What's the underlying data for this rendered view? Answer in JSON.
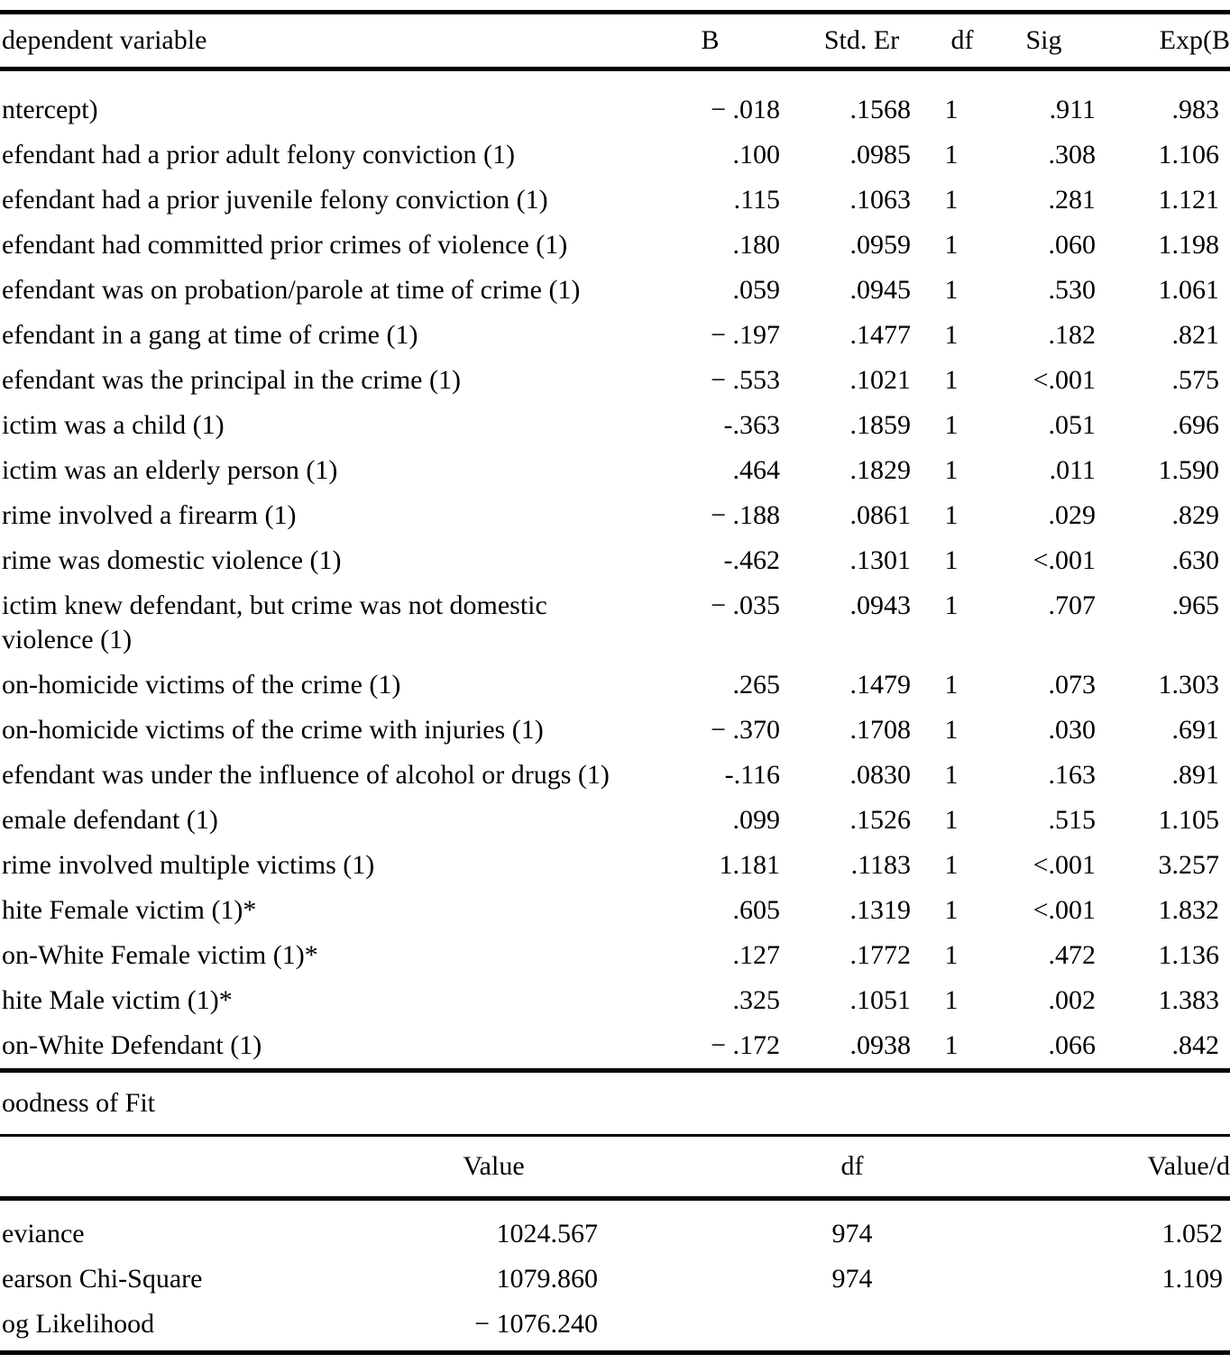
{
  "main_table": {
    "header": {
      "label": "dependent variable",
      "b": "B",
      "se": "Std. Er",
      "df": "df",
      "sig": "Sig",
      "exp": "Exp(B"
    },
    "rows": [
      {
        "label": "ntercept)",
        "b": "− .018",
        "se": ".1568",
        "df": "1",
        "sig": ".911",
        "exp": ".983"
      },
      {
        "label": "efendant had a prior adult felony conviction (1)",
        "b": ".100",
        "se": ".0985",
        "df": "1",
        "sig": ".308",
        "exp": "1.106"
      },
      {
        "label": "efendant had a prior juvenile felony conviction (1)",
        "b": ".115",
        "se": ".1063",
        "df": "1",
        "sig": ".281",
        "exp": "1.121"
      },
      {
        "label": "efendant had committed prior crimes of violence (1)",
        "b": ".180",
        "se": ".0959",
        "df": "1",
        "sig": ".060",
        "exp": "1.198"
      },
      {
        "label": "efendant was on probation/parole at time of crime (1)",
        "b": ".059",
        "se": ".0945",
        "df": "1",
        "sig": ".530",
        "exp": "1.061"
      },
      {
        "label": "efendant in a gang at time of crime (1)",
        "b": "− .197",
        "se": ".1477",
        "df": "1",
        "sig": ".182",
        "exp": ".821"
      },
      {
        "label": "efendant was the principal in the crime (1)",
        "b": "− .553",
        "se": ".1021",
        "df": "1",
        "sig": "<.001",
        "exp": ".575"
      },
      {
        "label": "ictim was a child (1)",
        "b": "-.363",
        "se": ".1859",
        "df": "1",
        "sig": ".051",
        "exp": ".696"
      },
      {
        "label": "ictim was an elderly person (1)",
        "b": ".464",
        "se": ".1829",
        "df": "1",
        "sig": ".011",
        "exp": "1.590"
      },
      {
        "label": "rime involved a firearm (1)",
        "b": "− .188",
        "se": ".0861",
        "df": "1",
        "sig": ".029",
        "exp": ".829"
      },
      {
        "label": "rime was domestic violence (1)",
        "b": "-.462",
        "se": ".1301",
        "df": "1",
        "sig": "<.001",
        "exp": ".630"
      },
      {
        "label": "ictim knew defendant, but crime was not domestic",
        "label2": "violence (1)",
        "b": "− .035",
        "se": ".0943",
        "df": "1",
        "sig": ".707",
        "exp": ".965"
      },
      {
        "label": "on-homicide victims of the crime (1)",
        "b": ".265",
        "se": ".1479",
        "df": "1",
        "sig": ".073",
        "exp": "1.303"
      },
      {
        "label": "on-homicide victims of the crime with injuries (1)",
        "b": "− .370",
        "se": ".1708",
        "df": "1",
        "sig": ".030",
        "exp": ".691"
      },
      {
        "label": "efendant was under the influence of alcohol or drugs (1)",
        "b": "-.116",
        "se": ".0830",
        "df": "1",
        "sig": ".163",
        "exp": ".891"
      },
      {
        "label": "emale defendant (1)",
        "b": ".099",
        "se": ".1526",
        "df": "1",
        "sig": ".515",
        "exp": "1.105"
      },
      {
        "label": "rime involved multiple victims (1)",
        "b": "1.181",
        "se": ".1183",
        "df": "1",
        "sig": "<.001",
        "exp": "3.257"
      },
      {
        "label": "hite Female victim (1)*",
        "b": ".605",
        "se": ".1319",
        "df": "1",
        "sig": "<.001",
        "exp": "1.832"
      },
      {
        "label": "on-White Female victim (1)*",
        "b": ".127",
        "se": ".1772",
        "df": "1",
        "sig": ".472",
        "exp": "1.136"
      },
      {
        "label": "hite Male victim (1)*",
        "b": ".325",
        "se": ".1051",
        "df": "1",
        "sig": ".002",
        "exp": "1.383"
      },
      {
        "label": "on-White Defendant (1)",
        "b": "− .172",
        "se": ".0938",
        "df": "1",
        "sig": ".066",
        "exp": ".842"
      }
    ]
  },
  "goodness_of_fit": {
    "title": "oodness of Fit",
    "header": {
      "value": "Value",
      "df": "df",
      "vdf": "Value/d"
    },
    "rows": [
      {
        "label": "eviance",
        "value": "1024.567",
        "df": "974",
        "vdf": "1.052"
      },
      {
        "label": "earson Chi-Square",
        "value": "1079.860",
        "df": "974",
        "vdf": "1.109"
      },
      {
        "label": "og Likelihood",
        "value": "− 1076.240",
        "df": "",
        "vdf": ""
      }
    ]
  }
}
